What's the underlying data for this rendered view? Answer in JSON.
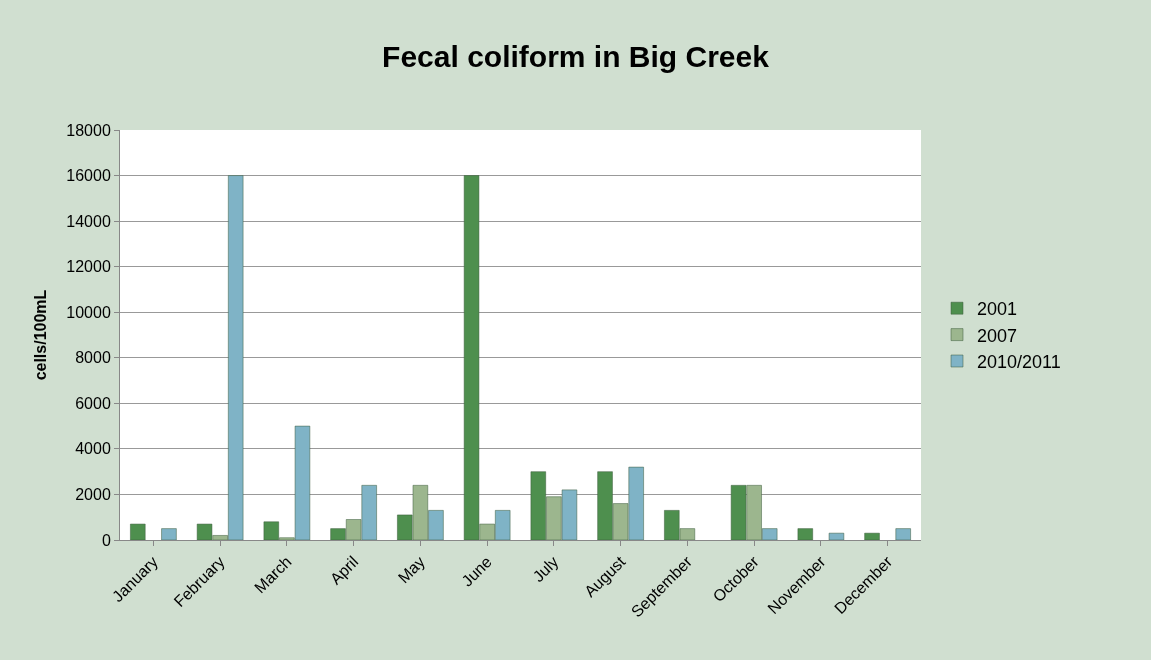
{
  "chart_data": {
    "type": "bar",
    "title": "Fecal coliform in Big Creek",
    "ylabel": "cells/100mL",
    "categories": [
      "January",
      "February",
      "March",
      "April",
      "May",
      "June",
      "July",
      "August",
      "September",
      "October",
      "November",
      "December"
    ],
    "series": [
      {
        "name": "2001",
        "color": "#4e8f4e",
        "values": [
          700,
          700,
          800,
          500,
          1100,
          16000,
          3000,
          3000,
          1300,
          2400,
          500,
          300
        ]
      },
      {
        "name": "2007",
        "color": "#9cb68e",
        "values": [
          null,
          200,
          100,
          900,
          2400,
          700,
          1900,
          1600,
          500,
          2400,
          null,
          null
        ]
      },
      {
        "name": "2010/2011",
        "color": "#7fb3c6",
        "values": [
          500,
          16000,
          5000,
          2400,
          1300,
          1300,
          2200,
          3200,
          null,
          500,
          300,
          500
        ]
      }
    ],
    "ylim": [
      0,
      18000
    ],
    "yticks": [
      0,
      2000,
      4000,
      6000,
      8000,
      10000,
      12000,
      14000,
      16000,
      18000
    ],
    "grid": "y",
    "legend": "right"
  }
}
